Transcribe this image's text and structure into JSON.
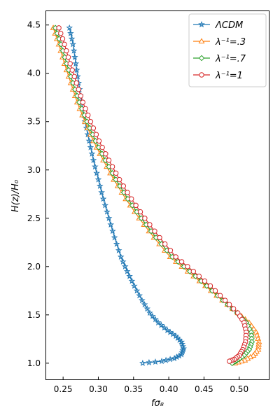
{
  "chart_data": {
    "type": "line",
    "xlabel": "fσ₈",
    "ylabel": "H(z)/H₀",
    "xlim": [
      0.225,
      0.543
    ],
    "ylim": [
      0.825,
      4.65
    ],
    "xticks": [
      "0.25",
      "0.30",
      "0.35",
      "0.40",
      "0.45",
      "0.50"
    ],
    "xtick_values": [
      0.25,
      0.3,
      0.35,
      0.4,
      0.45,
      0.5
    ],
    "yticks": [
      "1.0",
      "1.5",
      "2.0",
      "2.5",
      "3.0",
      "3.5",
      "4.0",
      "4.5"
    ],
    "ytick_values": [
      1.0,
      1.5,
      2.0,
      2.5,
      3.0,
      3.5,
      4.0,
      4.5
    ],
    "grid": false,
    "legend_position": "top-right",
    "series": [
      {
        "name": "ΛCDM",
        "marker": "star",
        "color": "#1f77b4",
        "x": [
          0.259,
          0.264,
          0.268,
          0.272,
          0.276,
          0.281,
          0.287,
          0.293,
          0.3,
          0.307,
          0.315,
          0.323,
          0.332,
          0.341,
          0.351,
          0.362,
          0.373,
          0.385,
          0.398,
          0.41,
          0.418,
          0.421,
          0.418,
          0.408,
          0.39,
          0.363
        ],
        "y": [
          4.47,
          4.3,
          4.1,
          3.9,
          3.7,
          3.5,
          3.3,
          3.1,
          2.9,
          2.7,
          2.5,
          2.3,
          2.1,
          1.95,
          1.8,
          1.65,
          1.52,
          1.42,
          1.34,
          1.28,
          1.22,
          1.15,
          1.09,
          1.05,
          1.02,
          1.0
        ]
      },
      {
        "name": "λ⁻¹=.3",
        "marker": "triangle",
        "color": "#ff7f0e",
        "x": [
          0.236,
          0.244,
          0.252,
          0.261,
          0.27,
          0.281,
          0.293,
          0.307,
          0.322,
          0.339,
          0.358,
          0.379,
          0.402,
          0.427,
          0.452,
          0.476,
          0.498,
          0.514,
          0.524,
          0.528,
          0.527,
          0.52,
          0.508,
          0.494
        ],
        "y": [
          4.47,
          4.3,
          4.1,
          3.9,
          3.7,
          3.5,
          3.3,
          3.1,
          2.9,
          2.7,
          2.5,
          2.3,
          2.1,
          1.95,
          1.8,
          1.65,
          1.52,
          1.42,
          1.32,
          1.22,
          1.14,
          1.08,
          1.03,
          1.0
        ]
      },
      {
        "name": "λ⁻¹=.7",
        "marker": "diamond",
        "color": "#2ca02c",
        "x": [
          0.239,
          0.247,
          0.255,
          0.264,
          0.273,
          0.284,
          0.296,
          0.31,
          0.325,
          0.342,
          0.361,
          0.382,
          0.405,
          0.43,
          0.454,
          0.477,
          0.497,
          0.51,
          0.517,
          0.518,
          0.514,
          0.507,
          0.497,
          0.49
        ],
        "y": [
          4.47,
          4.3,
          4.1,
          3.9,
          3.7,
          3.5,
          3.3,
          3.1,
          2.9,
          2.7,
          2.5,
          2.3,
          2.1,
          1.95,
          1.8,
          1.65,
          1.52,
          1.42,
          1.32,
          1.22,
          1.14,
          1.08,
          1.03,
          1.0
        ]
      },
      {
        "name": "λ⁻¹=1",
        "marker": "circle",
        "color": "#d62728",
        "x": [
          0.244,
          0.252,
          0.26,
          0.269,
          0.278,
          0.289,
          0.301,
          0.315,
          0.33,
          0.347,
          0.366,
          0.387,
          0.41,
          0.435,
          0.459,
          0.48,
          0.498,
          0.507,
          0.51,
          0.509,
          0.505,
          0.5,
          0.493,
          0.486
        ],
        "y": [
          4.47,
          4.3,
          4.1,
          3.9,
          3.7,
          3.5,
          3.3,
          3.1,
          2.9,
          2.7,
          2.5,
          2.3,
          2.1,
          1.95,
          1.8,
          1.65,
          1.52,
          1.42,
          1.32,
          1.22,
          1.14,
          1.08,
          1.04,
          1.02
        ]
      }
    ]
  }
}
